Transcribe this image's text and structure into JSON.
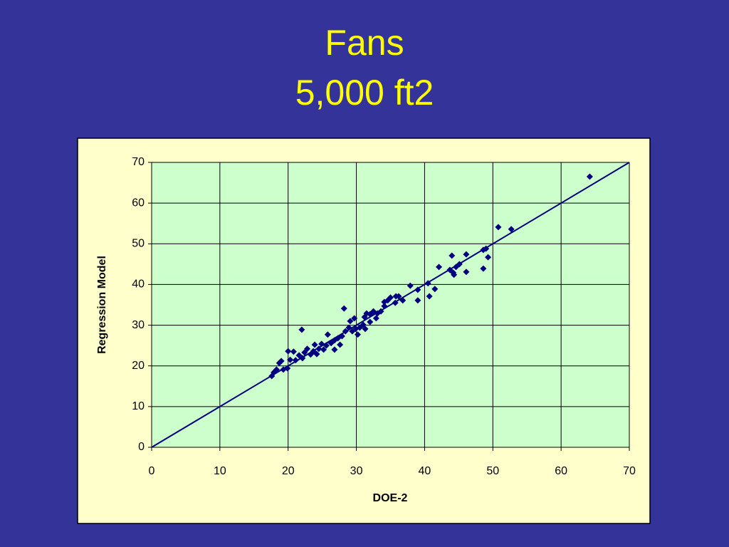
{
  "chart_data": {
    "type": "scatter",
    "title": "Fans",
    "subtitle": "5,000 ft2",
    "x_label": "DOE-2",
    "y_label": "Regression Model",
    "xlim": [
      0,
      70
    ],
    "ylim": [
      0,
      70
    ],
    "xticks": [
      0,
      10,
      20,
      30,
      40,
      50,
      60,
      70
    ],
    "yticks": [
      0,
      10,
      20,
      30,
      40,
      50,
      60,
      70
    ],
    "grid": true,
    "color": "#000080",
    "x": [
      64.2,
      50.8,
      52.7,
      49.0,
      48.6,
      49.3,
      48.6,
      46.1,
      44.0,
      45.1,
      44.6,
      43.7,
      44.2,
      46.1,
      44.3,
      42.1,
      41.5,
      40.5,
      40.7,
      39.0,
      39.0,
      37.9,
      36.8,
      35.8,
      35.0,
      34.6,
      34.1,
      35.7,
      33.6,
      33.1,
      32.5,
      32.0,
      31.5,
      31.2,
      32.9,
      32.0,
      31.0,
      30.5,
      29.9,
      29.7,
      29.1,
      29.4,
      28.9,
      28.4,
      27.9,
      28.2,
      27.3,
      26.8,
      26.3,
      25.8,
      25.6,
      24.9,
      24.5,
      23.9,
      23.7,
      23.3,
      22.8,
      22.4,
      22.0,
      22.1,
      21.6,
      21.1,
      20.8,
      20.3,
      20.0,
      19.9,
      19.3,
      19.0,
      18.7,
      18.3,
      17.9,
      17.6,
      26.8,
      27.6,
      30.2,
      31.3,
      34.1,
      36.2,
      24.2,
      25.2
    ],
    "values": [
      66.5,
      54.1,
      53.6,
      48.8,
      48.5,
      46.7,
      43.9,
      47.4,
      47.1,
      45.0,
      44.3,
      43.6,
      42.9,
      43.1,
      42.4,
      44.3,
      38.9,
      40.3,
      37.1,
      38.7,
      36.1,
      39.7,
      36.1,
      37.1,
      36.8,
      36.1,
      35.7,
      35.5,
      33.4,
      32.9,
      33.4,
      32.7,
      32.9,
      32.0,
      31.7,
      30.8,
      30.1,
      29.4,
      29.1,
      31.7,
      31.0,
      28.5,
      29.4,
      28.5,
      27.3,
      34.1,
      26.8,
      26.3,
      25.6,
      27.7,
      25.0,
      25.4,
      24.2,
      25.2,
      23.6,
      22.8,
      24.2,
      23.3,
      28.9,
      21.9,
      22.6,
      21.4,
      23.5,
      21.5,
      23.6,
      19.4,
      19.1,
      21.2,
      20.7,
      19.1,
      18.4,
      17.5,
      24.0,
      25.2,
      27.7,
      29.1,
      34.7,
      37.1,
      22.9,
      24.0
    ]
  }
}
